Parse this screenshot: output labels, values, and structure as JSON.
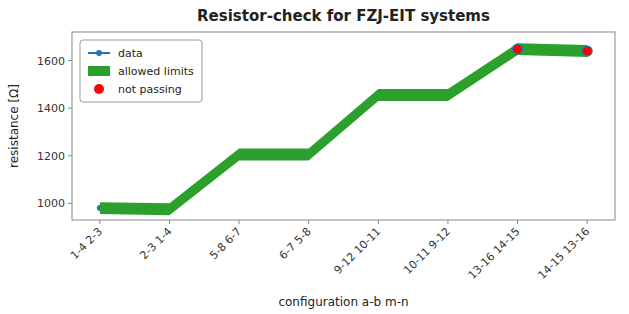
{
  "chart_data": {
    "type": "line",
    "title": "Resistor-check for FZJ-EIT systems",
    "xlabel": "configuration a-b m-n",
    "ylabel": "resistance [Ω]",
    "categories": [
      "1-4 2-3",
      "2-3 1-4",
      "5-8 6-7",
      "6-7 5-8",
      "9-12 10-11",
      "10-11 9-12",
      "13-16 14-15",
      "14-15 13-16"
    ],
    "series": [
      {
        "name": "data",
        "type": "line",
        "marker": "circle",
        "color": "#1f77b4",
        "values": [
          980,
          975,
          1205,
          1205,
          1455,
          1455,
          1648,
          1640
        ]
      },
      {
        "name": "allowed limits",
        "type": "band",
        "color": "#2ca02c",
        "upper": [
          1005,
          1000,
          1230,
          1230,
          1480,
          1480,
          1673,
          1665
        ],
        "lower": [
          955,
          950,
          1180,
          1180,
          1430,
          1430,
          1623,
          1615
        ]
      },
      {
        "name": "not passing",
        "type": "scatter",
        "marker": "circle",
        "color": "red",
        "values": [
          null,
          null,
          null,
          null,
          null,
          null,
          1648,
          1640
        ]
      }
    ],
    "ylim": [
      930,
      1720
    ],
    "yticks": [
      1000,
      1200,
      1400,
      1600
    ],
    "grid": false,
    "legend": "upper left"
  }
}
